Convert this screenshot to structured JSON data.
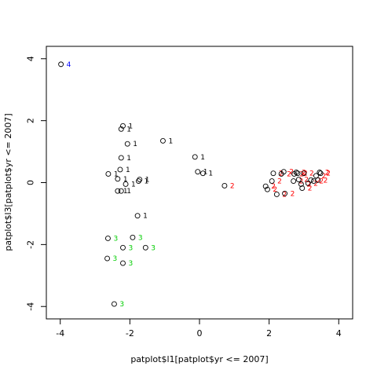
{
  "chart_data": {
    "type": "scatter",
    "xlabel": "patplot$l1[patplot$yr <= 2007]",
    "ylabel": "patplot$l3[patplot$yr <= 2007]",
    "xlim": [
      -4.4,
      4.4
    ],
    "ylim": [
      -4.4,
      4.4
    ],
    "x_ticks": [
      -4,
      -2,
      0,
      2,
      4
    ],
    "y_ticks": [
      -4,
      -2,
      0,
      2,
      4
    ],
    "grid": false,
    "label_colors": {
      "1": "#000000",
      "2": "#ff0000",
      "3": "#00cd00",
      "4": "#0000ff"
    },
    "points": [
      {
        "x": -3.98,
        "y": 3.82,
        "label": "4"
      },
      {
        "x": -2.2,
        "y": 1.83,
        "label": "1"
      },
      {
        "x": -2.25,
        "y": 1.73,
        "label": "1"
      },
      {
        "x": -2.07,
        "y": 1.25,
        "label": "1"
      },
      {
        "x": -1.05,
        "y": 1.35,
        "label": "1"
      },
      {
        "x": -2.25,
        "y": 0.8,
        "label": "1"
      },
      {
        "x": -0.13,
        "y": 0.83,
        "label": "1"
      },
      {
        "x": -2.28,
        "y": 0.42,
        "label": "1"
      },
      {
        "x": -2.62,
        "y": 0.28,
        "label": "1"
      },
      {
        "x": -0.05,
        "y": 0.35,
        "label": "1"
      },
      {
        "x": 0.1,
        "y": 0.3,
        "label": "1"
      },
      {
        "x": -2.35,
        "y": 0.12,
        "label": "1"
      },
      {
        "x": -1.72,
        "y": 0.1,
        "label": "1"
      },
      {
        "x": -1.75,
        "y": 0.05,
        "label": "1"
      },
      {
        "x": -2.12,
        "y": -0.05,
        "label": "1"
      },
      {
        "x": -2.35,
        "y": -0.27,
        "label": "1"
      },
      {
        "x": -2.25,
        "y": -0.27,
        "label": "1"
      },
      {
        "x": -1.78,
        "y": -1.07,
        "label": "1"
      },
      {
        "x": 0.72,
        "y": -0.1,
        "label": "2"
      },
      {
        "x": 1.9,
        "y": -0.12,
        "label": "2"
      },
      {
        "x": 1.95,
        "y": -0.22,
        "label": "2"
      },
      {
        "x": 2.08,
        "y": 0.05,
        "label": "2"
      },
      {
        "x": 2.12,
        "y": 0.3,
        "label": "2"
      },
      {
        "x": 2.22,
        "y": -0.38,
        "label": "2"
      },
      {
        "x": 2.35,
        "y": 0.28,
        "label": "2"
      },
      {
        "x": 2.42,
        "y": 0.35,
        "label": "2"
      },
      {
        "x": 2.45,
        "y": -0.35,
        "label": "2"
      },
      {
        "x": 2.7,
        "y": 0.05,
        "label": "2"
      },
      {
        "x": 2.72,
        "y": 0.28,
        "label": "2"
      },
      {
        "x": 2.78,
        "y": 0.33,
        "label": "2"
      },
      {
        "x": 2.82,
        "y": 0.3,
        "label": "2"
      },
      {
        "x": 2.85,
        "y": 0.1,
        "label": "2"
      },
      {
        "x": 2.92,
        "y": -0.05,
        "label": "2"
      },
      {
        "x": 2.95,
        "y": -0.18,
        "label": "2"
      },
      {
        "x": 3.0,
        "y": 0.3,
        "label": "2"
      },
      {
        "x": 3.12,
        "y": -0.02,
        "label": "2"
      },
      {
        "x": 3.2,
        "y": 0.08,
        "label": "2"
      },
      {
        "x": 3.28,
        "y": 0.05,
        "label": "2"
      },
      {
        "x": 3.35,
        "y": 0.22,
        "label": "2"
      },
      {
        "x": 3.4,
        "y": 0.08,
        "label": "2"
      },
      {
        "x": 3.45,
        "y": 0.33,
        "label": "2"
      },
      {
        "x": 3.48,
        "y": 0.3,
        "label": "2"
      },
      {
        "x": -1.92,
        "y": -1.77,
        "label": "3"
      },
      {
        "x": -2.63,
        "y": -1.8,
        "label": "3"
      },
      {
        "x": -2.2,
        "y": -2.1,
        "label": "3"
      },
      {
        "x": -1.55,
        "y": -2.1,
        "label": "3"
      },
      {
        "x": -2.65,
        "y": -2.45,
        "label": "3"
      },
      {
        "x": -2.2,
        "y": -2.6,
        "label": "3"
      },
      {
        "x": -2.45,
        "y": -3.92,
        "label": "3"
      }
    ]
  }
}
